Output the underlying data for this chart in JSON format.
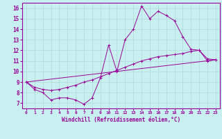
{
  "xlabel": "Windchill (Refroidissement éolien,°C)",
  "background_color": "#c8f0f0",
  "line_color": "#990099",
  "xlim": [
    -0.5,
    23.5
  ],
  "ylim": [
    6.5,
    16.5
  ],
  "xticks": [
    0,
    1,
    2,
    3,
    4,
    5,
    6,
    7,
    8,
    9,
    10,
    11,
    12,
    13,
    14,
    15,
    16,
    17,
    18,
    19,
    20,
    21,
    22,
    23
  ],
  "yticks": [
    7,
    8,
    9,
    10,
    11,
    12,
    13,
    14,
    15,
    16
  ],
  "grid_color": "#b0d8d8",
  "series1_x": [
    0,
    1,
    2,
    3,
    4,
    5,
    6,
    7,
    8,
    9,
    10,
    11,
    12,
    13,
    14,
    15,
    16,
    17,
    18,
    19,
    20,
    21,
    22,
    23
  ],
  "series1_y": [
    9.0,
    8.3,
    8.0,
    7.3,
    7.5,
    7.5,
    7.3,
    6.9,
    7.5,
    9.4,
    12.5,
    10.0,
    13.0,
    14.0,
    16.2,
    15.0,
    15.7,
    15.3,
    14.8,
    13.3,
    12.1,
    12.0,
    11.0,
    11.1
  ],
  "series2_x": [
    0,
    23
  ],
  "series2_y": [
    9.0,
    11.1
  ],
  "series3_x": [
    0,
    1,
    2,
    3,
    4,
    5,
    6,
    7,
    8,
    9,
    10,
    11,
    12,
    13,
    14,
    15,
    16,
    17,
    18,
    19,
    20,
    21,
    22,
    23
  ],
  "series3_y": [
    9.0,
    8.5,
    8.3,
    8.2,
    8.3,
    8.5,
    8.7,
    9.0,
    9.2,
    9.5,
    9.8,
    10.1,
    10.4,
    10.7,
    11.0,
    11.2,
    11.4,
    11.5,
    11.6,
    11.7,
    11.9,
    12.0,
    11.2,
    11.1
  ]
}
